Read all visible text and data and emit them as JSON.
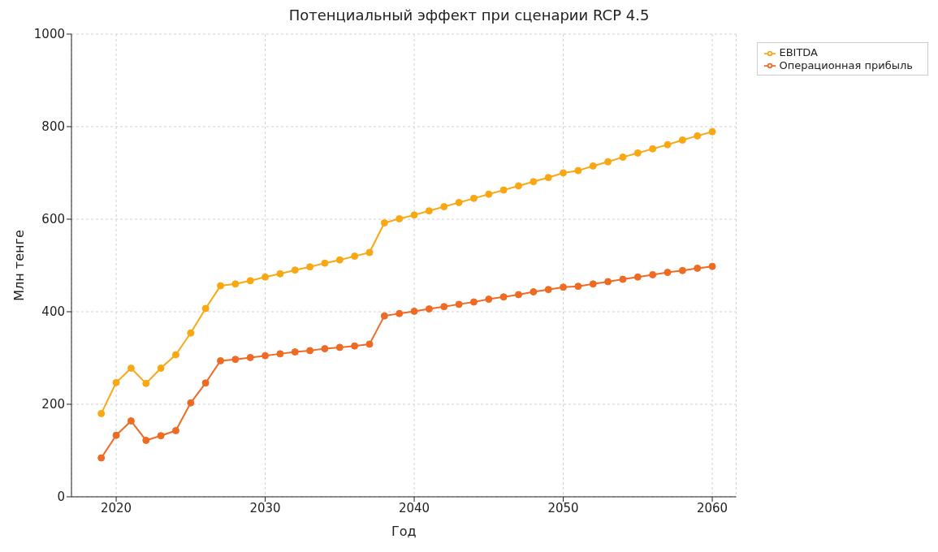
{
  "chart_data": {
    "type": "line",
    "title": "Потенциальный эффект при сценарии RCP 4.5",
    "xlabel": "Год",
    "ylabel": "Млн тенге",
    "x": [
      2019,
      2020,
      2021,
      2022,
      2023,
      2024,
      2025,
      2026,
      2027,
      2028,
      2029,
      2030,
      2031,
      2032,
      2033,
      2034,
      2035,
      2036,
      2037,
      2038,
      2039,
      2040,
      2041,
      2042,
      2043,
      2044,
      2045,
      2046,
      2047,
      2048,
      2049,
      2050,
      2051,
      2052,
      2053,
      2054,
      2055,
      2056,
      2057,
      2058,
      2059,
      2060
    ],
    "series": [
      {
        "name": "EBITDA",
        "color": "#f9a813",
        "values": [
          180,
          247,
          278,
          245,
          278,
          307,
          354,
          407,
          456,
          460,
          467,
          475,
          482,
          490,
          497,
          505,
          512,
          520,
          528,
          592,
          601,
          609,
          618,
          627,
          636,
          645,
          654,
          663,
          672,
          681,
          690,
          700,
          705,
          715,
          724,
          734,
          743,
          752,
          761,
          771,
          780,
          789
        ]
      },
      {
        "name": "Операционная прибыль",
        "color": "#ef6a22",
        "values": [
          84,
          133,
          164,
          122,
          132,
          143,
          203,
          246,
          294,
          297,
          301,
          305,
          309,
          313,
          316,
          320,
          323,
          326,
          330,
          391,
          396,
          401,
          406,
          411,
          416,
          421,
          427,
          432,
          437,
          443,
          448,
          453,
          455,
          460,
          465,
          470,
          475,
          480,
          485,
          489,
          494,
          498
        ]
      }
    ],
    "xlim": [
      2017,
      2061.6
    ],
    "xticks": [
      2020,
      2030,
      2040,
      2050,
      2060
    ],
    "ylim": [
      0,
      1000
    ],
    "yticks": [
      0,
      200,
      400,
      600,
      800,
      1000
    ],
    "grid": true,
    "legend": "top right",
    "marker": "circle",
    "line_style": "solid"
  }
}
